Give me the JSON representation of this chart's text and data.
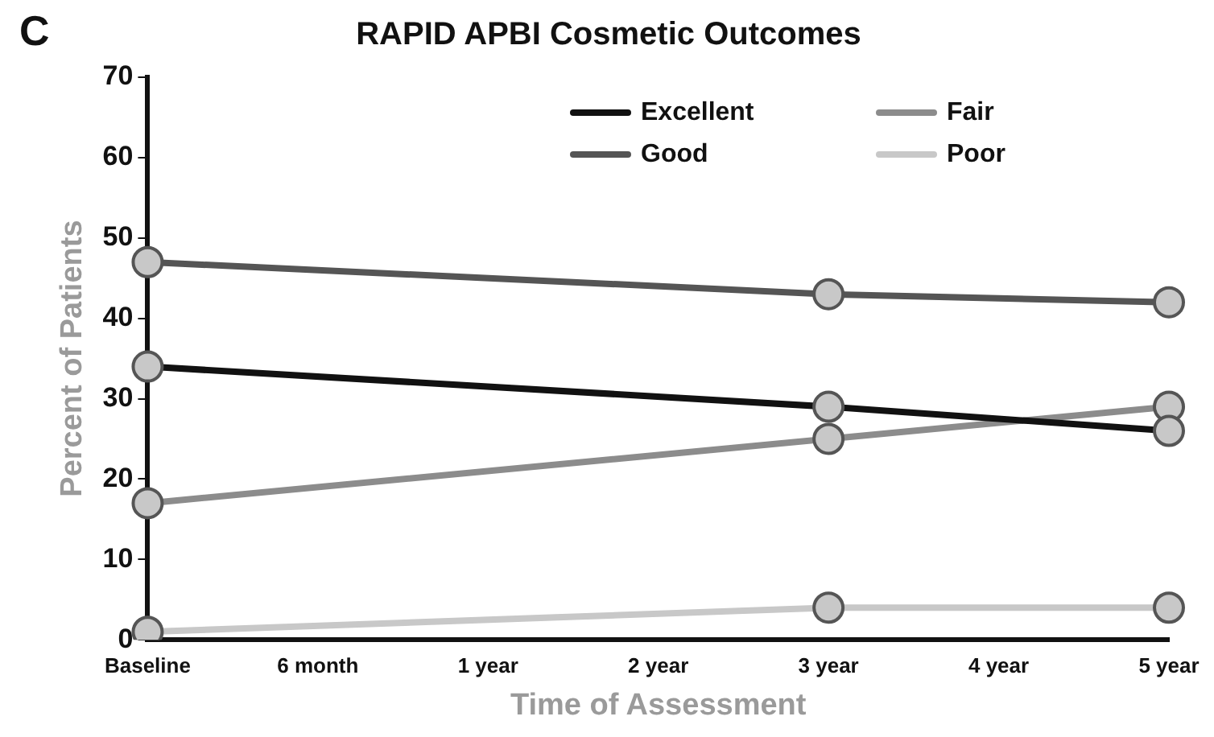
{
  "chart_data": {
    "type": "line",
    "title": "RAPID APBI Cosmetic Outcomes",
    "xlabel": "Time of Assessment",
    "ylabel": "Percent of Patients",
    "annotations": [
      "C"
    ],
    "categories": [
      "Baseline",
      "6 month",
      "1 year",
      "2 year",
      "3 year",
      "4 year",
      "5 year"
    ],
    "series": [
      {
        "name": "Excellent",
        "color": "#111111",
        "values": [
          34,
          null,
          null,
          null,
          29,
          null,
          26
        ]
      },
      {
        "name": "Good",
        "color": "#555555",
        "values": [
          47,
          null,
          null,
          null,
          43,
          null,
          42
        ]
      },
      {
        "name": "Fair",
        "color": "#8c8c8c",
        "values": [
          17,
          null,
          null,
          null,
          25,
          null,
          29
        ]
      },
      {
        "name": "Poor",
        "color": "#c8c8c8",
        "values": [
          1,
          null,
          null,
          null,
          4,
          null,
          4
        ]
      }
    ],
    "ylim": [
      0,
      70
    ],
    "yticks": [
      0,
      10,
      20,
      30,
      40,
      50,
      60,
      70
    ],
    "grid": false,
    "legend": "top right",
    "marker": "circle",
    "line_style": "solid"
  }
}
